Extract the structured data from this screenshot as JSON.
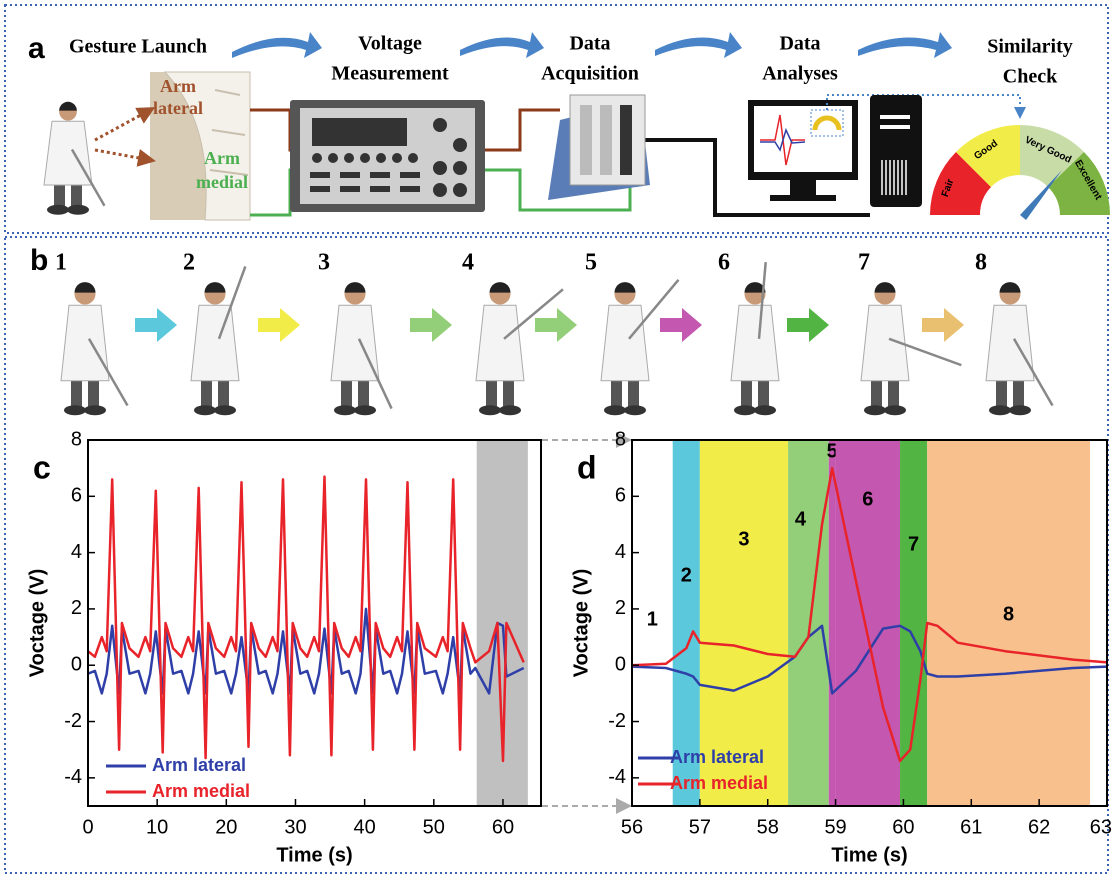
{
  "panel_a": {
    "label": "a",
    "steps": [
      [
        "Gesture Launch"
      ],
      [
        "Voltage",
        "Measurement"
      ],
      [
        "Data",
        "Acquisition"
      ],
      [
        "Data",
        "Analyses"
      ],
      [
        "Similarity",
        "Check"
      ]
    ],
    "arm_lateral": [
      "Arm",
      "lateral"
    ],
    "arm_medial": [
      "Arm",
      "medial"
    ],
    "gauge": [
      "Fair",
      "Good",
      "Very Good",
      "Excellent"
    ]
  },
  "panel_b": {
    "label": "b",
    "steps": [
      "1",
      "2",
      "3",
      "4",
      "5",
      "6",
      "7",
      "8"
    ]
  },
  "chart_data": [
    {
      "type": "line",
      "panel_label": "c",
      "x_label": "Time (s)",
      "y_label": "Voctage (V)",
      "xlim": [
        0,
        65.5
      ],
      "ylim": [
        -5,
        8
      ],
      "xticks": [
        0,
        10,
        20,
        30,
        40,
        50,
        60
      ],
      "yticks": [
        -4,
        -2,
        0,
        2,
        4,
        6,
        8
      ],
      "legend": "lower left",
      "shaded_range": [
        56.2,
        63.6
      ],
      "shaded_color": "#c0c0c0",
      "x": [
        0,
        1.0,
        2.0,
        2.7,
        3.5,
        4.5,
        4.9,
        6.0,
        7.3,
        8.3,
        9.0,
        9.8,
        10.8,
        11.2,
        12.3,
        13.5,
        14.5,
        15.2,
        16.0,
        17.0,
        17.4,
        18.5,
        19.7,
        20.7,
        21.4,
        22.2,
        23.2,
        23.6,
        24.7,
        25.7,
        26.7,
        27.4,
        28.2,
        29.2,
        29.6,
        30.7,
        31.7,
        32.7,
        33.4,
        34.2,
        35.2,
        35.6,
        36.7,
        37.7,
        38.7,
        39.4,
        40.2,
        41.2,
        41.6,
        42.7,
        43.7,
        44.7,
        45.4,
        46.2,
        47.2,
        47.6,
        48.7,
        50.3,
        51.3,
        52.0,
        52.8,
        53.8,
        54.2,
        55.3,
        56.0,
        58.0,
        59.2,
        60.0,
        60.5,
        63.0
      ],
      "series": [
        {
          "name": "Arm lateral",
          "color": "#2f3fa8",
          "values": [
            -0.3,
            -0.2,
            -1.0,
            -0.3,
            1.4,
            -1.0,
            1.3,
            -0.3,
            -0.2,
            -1.0,
            -0.3,
            1.2,
            -1.0,
            1.3,
            -0.3,
            -0.2,
            -1.0,
            -0.3,
            1.2,
            -1.0,
            1.3,
            -0.3,
            -0.2,
            -1.0,
            -0.3,
            1.0,
            -1.0,
            1.3,
            -0.3,
            -0.2,
            -1.0,
            -0.3,
            1.2,
            -1.0,
            1.3,
            -0.3,
            -0.2,
            -1.0,
            -0.3,
            1.3,
            -1.0,
            1.3,
            -0.3,
            -0.2,
            -1.0,
            -0.3,
            2.0,
            -1.0,
            1.3,
            -0.3,
            -0.2,
            -1.0,
            -0.3,
            1.2,
            -1.0,
            1.3,
            -0.3,
            -0.2,
            -1.0,
            -0.3,
            1.0,
            -1.0,
            1.3,
            -0.3,
            -0.1,
            -1.0,
            1.5,
            1.4,
            -0.4,
            -0.1
          ]
        },
        {
          "name": "Arm medial",
          "color": "#e8232a",
          "values": [
            0.5,
            0.3,
            1.0,
            0.5,
            6.6,
            -3.0,
            1.5,
            0.6,
            0.3,
            1.0,
            0.5,
            6.2,
            -3.1,
            1.5,
            0.6,
            0.3,
            1.0,
            0.5,
            6.3,
            -3.3,
            1.5,
            0.6,
            0.3,
            1.0,
            0.5,
            6.5,
            -2.9,
            1.5,
            0.6,
            0.3,
            1.0,
            0.5,
            6.6,
            -3.2,
            1.5,
            0.6,
            0.3,
            1.0,
            0.5,
            6.7,
            -3.2,
            1.5,
            0.6,
            0.3,
            1.0,
            0.5,
            6.6,
            -3.0,
            1.5,
            0.6,
            0.3,
            1.0,
            0.5,
            6.5,
            -3.0,
            1.5,
            0.6,
            0.3,
            1.0,
            0.5,
            6.6,
            -3.0,
            1.5,
            0.6,
            0.1,
            0.5,
            1.5,
            -3.4,
            1.5,
            0.1
          ]
        }
      ]
    },
    {
      "type": "line",
      "panel_label": "d",
      "x_label": "Time (s)",
      "y_label": "Voctage (V)",
      "xlim": [
        56,
        63
      ],
      "ylim": [
        -5,
        8
      ],
      "xticks": [
        56,
        57,
        58,
        59,
        60,
        61,
        62,
        63
      ],
      "yticks": [
        -4,
        -2,
        0,
        2,
        4,
        6,
        8
      ],
      "legend": "lower left",
      "phases": [
        {
          "label": "1",
          "start": 56,
          "end": 56.6,
          "color": "#ffffff"
        },
        {
          "label": "2",
          "start": 56.6,
          "end": 57.0,
          "color": "#5bc8dc"
        },
        {
          "label": "3",
          "start": 57.0,
          "end": 58.3,
          "color": "#f2ec48"
        },
        {
          "label": "4",
          "start": 58.3,
          "end": 58.9,
          "color": "#93cf78"
        },
        {
          "label": "5",
          "start": 58.9,
          "end": 59.0,
          "color": "#c458b0"
        },
        {
          "label": "6",
          "start": 59.0,
          "end": 59.95,
          "color": "#c458b0"
        },
        {
          "label": "7",
          "start": 59.95,
          "end": 60.35,
          "color": "#52b443"
        },
        {
          "label": "8",
          "start": 60.35,
          "end": 62.75,
          "color": "#f8c08c"
        }
      ],
      "x": [
        56,
        56.5,
        56.8,
        56.9,
        57.0,
        57.5,
        58.0,
        58.4,
        58.6,
        58.8,
        58.95,
        59.3,
        59.7,
        59.95,
        60.1,
        60.25,
        60.35,
        60.5,
        60.8,
        61.5,
        62.5,
        63
      ],
      "series": [
        {
          "name": "Arm lateral",
          "color": "#2f3fa8",
          "values": [
            -0.05,
            -0.1,
            -0.3,
            -0.4,
            -0.7,
            -0.9,
            -0.4,
            0.3,
            1.0,
            1.4,
            -1.0,
            -0.2,
            1.3,
            1.4,
            1.2,
            0.5,
            -0.3,
            -0.4,
            -0.4,
            -0.3,
            -0.1,
            -0.05
          ]
        },
        {
          "name": "Arm medial",
          "color": "#e8232a",
          "values": [
            0.0,
            0.05,
            0.6,
            1.2,
            0.8,
            0.7,
            0.4,
            0.3,
            1.0,
            5.0,
            7.0,
            3.0,
            -1.5,
            -3.4,
            -3.0,
            -0.5,
            1.5,
            1.4,
            0.8,
            0.5,
            0.2,
            0.1
          ]
        }
      ]
    }
  ]
}
